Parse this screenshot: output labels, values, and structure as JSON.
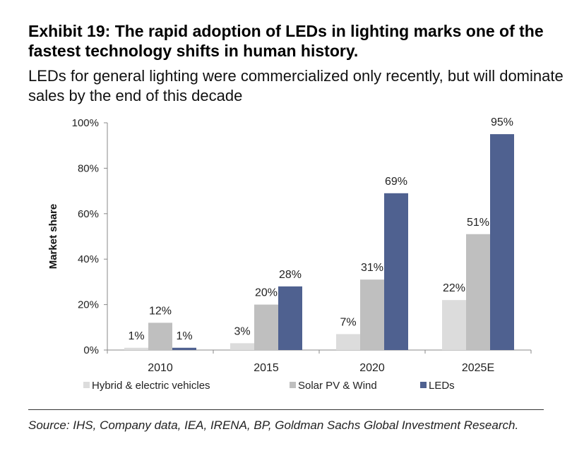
{
  "title": "Exhibit 19: The rapid adoption of LEDs in lighting marks one of the fastest technology shifts in human history.",
  "subtitle": "LEDs for general lighting were commercialized only recently, but will dominate sales by the end of this decade",
  "source": "Source: IHS, Company data, IEA, IRENA, BP, Goldman Sachs Global Investment Research.",
  "chart_data": {
    "type": "bar",
    "categories": [
      "2010",
      "2015",
      "2020",
      "2025E"
    ],
    "ylabel": "Market share",
    "ylim": [
      0,
      100
    ],
    "yticks": [
      "0%",
      "20%",
      "40%",
      "60%",
      "80%",
      "100%"
    ],
    "legend_position": "bottom",
    "series": [
      {
        "name": "Hybrid & electric vehicles",
        "values": [
          1,
          3,
          7,
          22
        ],
        "labels": [
          "1%",
          "3%",
          "7%",
          "22%"
        ],
        "color": "#dcdcdc"
      },
      {
        "name": "Solar PV & Wind",
        "values": [
          12,
          20,
          31,
          51
        ],
        "labels": [
          "12%",
          "20%",
          "31%",
          "51%"
        ],
        "color": "#bfbfbf"
      },
      {
        "name": "LEDs",
        "values": [
          1,
          28,
          69,
          95
        ],
        "labels": [
          "1%",
          "28%",
          "69%",
          "95%"
        ],
        "color": "#4f6190"
      }
    ]
  }
}
